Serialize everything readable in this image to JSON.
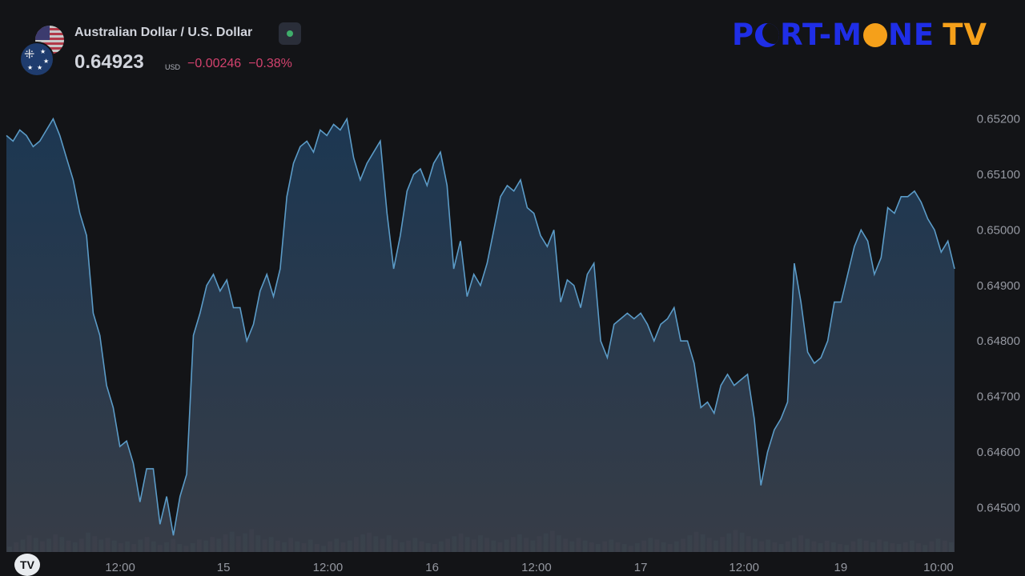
{
  "header": {
    "symbol_name": "Australian Dollar / U.S. Dollar",
    "price": "0.64923",
    "currency": "USD",
    "change": "−0.00246",
    "change_pct": "−0.38%",
    "change_color": "#d3426e",
    "status_color": "#3fae6b"
  },
  "watermark": {
    "part1": "P",
    "part2": "RT-M",
    "part3": "NE",
    "part4": "TV",
    "icon_names": [
      "moon-icon",
      "sun-icon"
    ]
  },
  "tv_logo": "TV",
  "chart_data": {
    "type": "area",
    "title": "",
    "xlabel": "",
    "ylabel": "",
    "ylim": [
      0.6442,
      0.6527
    ],
    "y_tick_values": [
      0.652,
      0.651,
      0.65,
      0.649,
      0.648,
      0.647,
      0.646,
      0.645
    ],
    "y_tick_labels": [
      "0.65200",
      "0.65100",
      "0.65000",
      "0.64900",
      "0.64800",
      "0.64700",
      "0.64600",
      "0.64500"
    ],
    "x_tick_labels": [
      "12:00",
      "15",
      "12:00",
      "16",
      "12:00",
      "17",
      "12:00",
      "19",
      "10:00"
    ],
    "x_tick_positions": [
      0.12,
      0.229,
      0.339,
      0.449,
      0.559,
      0.669,
      0.778,
      0.88,
      0.983
    ],
    "line_color": "#5b9bc7",
    "grid": false,
    "series": [
      {
        "values": [
          0.6517,
          0.6516,
          0.6518,
          0.6517,
          0.6515,
          0.6516,
          0.6518,
          0.652,
          0.6517,
          0.6513,
          0.6509,
          0.6503,
          0.6499,
          0.6485,
          0.6481,
          0.6472,
          0.6468,
          0.6461,
          0.6462,
          0.6458,
          0.6451,
          0.6457,
          0.6457,
          0.6447,
          0.6452,
          0.6445,
          0.6452,
          0.6456,
          0.6481,
          0.6485,
          0.649,
          0.6492,
          0.6489,
          0.6491,
          0.6486,
          0.6486,
          0.648,
          0.6483,
          0.6489,
          0.6492,
          0.6488,
          0.6493,
          0.6506,
          0.6512,
          0.6515,
          0.6516,
          0.6514,
          0.6518,
          0.6517,
          0.6519,
          0.6518,
          0.652,
          0.6513,
          0.6509,
          0.6512,
          0.6514,
          0.6516,
          0.6503,
          0.6493,
          0.6499,
          0.6507,
          0.651,
          0.6511,
          0.6508,
          0.6512,
          0.6514,
          0.6508,
          0.6493,
          0.6498,
          0.6488,
          0.6492,
          0.649,
          0.6494,
          0.65,
          0.6506,
          0.6508,
          0.6507,
          0.6509,
          0.6504,
          0.6503,
          0.6499,
          0.6497,
          0.65,
          0.6487,
          0.6491,
          0.649,
          0.6486,
          0.6492,
          0.6494,
          0.648,
          0.6477,
          0.6483,
          0.6484,
          0.6485,
          0.6484,
          0.6485,
          0.6483,
          0.648,
          0.6483,
          0.6484,
          0.6486,
          0.648,
          0.648,
          0.6476,
          0.6468,
          0.6469,
          0.6467,
          0.6472,
          0.6474,
          0.6472,
          0.6473,
          0.6474,
          0.6466,
          0.6454,
          0.646,
          0.6464,
          0.6466,
          0.6469,
          0.6494,
          0.6487,
          0.6478,
          0.6476,
          0.6477,
          0.648,
          0.6487,
          0.6487,
          0.6492,
          0.6497,
          0.65,
          0.6498,
          0.6492,
          0.6495,
          0.6504,
          0.6503,
          0.6506,
          0.6506,
          0.6507,
          0.6505,
          0.6502,
          0.65,
          0.6496,
          0.6498,
          0.6493
        ]
      }
    ],
    "volume": {
      "heights": [
        0.06,
        0.11,
        0.14,
        0.19,
        0.16,
        0.12,
        0.15,
        0.2,
        0.17,
        0.13,
        0.11,
        0.15,
        0.22,
        0.18,
        0.14,
        0.16,
        0.13,
        0.1,
        0.12,
        0.09,
        0.14,
        0.17,
        0.12,
        0.08,
        0.11,
        0.15,
        0.09,
        0.07,
        0.1,
        0.14,
        0.13,
        0.17,
        0.15,
        0.2,
        0.23,
        0.18,
        0.21,
        0.26,
        0.19,
        0.14,
        0.17,
        0.13,
        0.11,
        0.16,
        0.12,
        0.1,
        0.14,
        0.09,
        0.07,
        0.12,
        0.15,
        0.11,
        0.13,
        0.17,
        0.2,
        0.22,
        0.18,
        0.15,
        0.19,
        0.14,
        0.11,
        0.13,
        0.16,
        0.12,
        0.1,
        0.09,
        0.12,
        0.15,
        0.18,
        0.21,
        0.17,
        0.14,
        0.19,
        0.16,
        0.13,
        0.11,
        0.14,
        0.17,
        0.2,
        0.16,
        0.13,
        0.18,
        0.21,
        0.24,
        0.19,
        0.15,
        0.12,
        0.16,
        0.13,
        0.11,
        0.09,
        0.12,
        0.14,
        0.11,
        0.09,
        0.07,
        0.1,
        0.13,
        0.16,
        0.14,
        0.11,
        0.09,
        0.12,
        0.15,
        0.19,
        0.23,
        0.2,
        0.16,
        0.13,
        0.17,
        0.21,
        0.25,
        0.22,
        0.18,
        0.15,
        0.12,
        0.14,
        0.11,
        0.09,
        0.12,
        0.16,
        0.19,
        0.15,
        0.12,
        0.1,
        0.13,
        0.11,
        0.09,
        0.08,
        0.12,
        0.15,
        0.13,
        0.11,
        0.14,
        0.12,
        0.1,
        0.09,
        0.11,
        0.13,
        0.1,
        0.08,
        0.12,
        0.15,
        0.13,
        0.11
      ],
      "colors": [
        "#3c5a52",
        "#5a3c48",
        "#3c5a52",
        "#5a3c48",
        "#3c5a52",
        "#5a3c48"
      ]
    }
  }
}
